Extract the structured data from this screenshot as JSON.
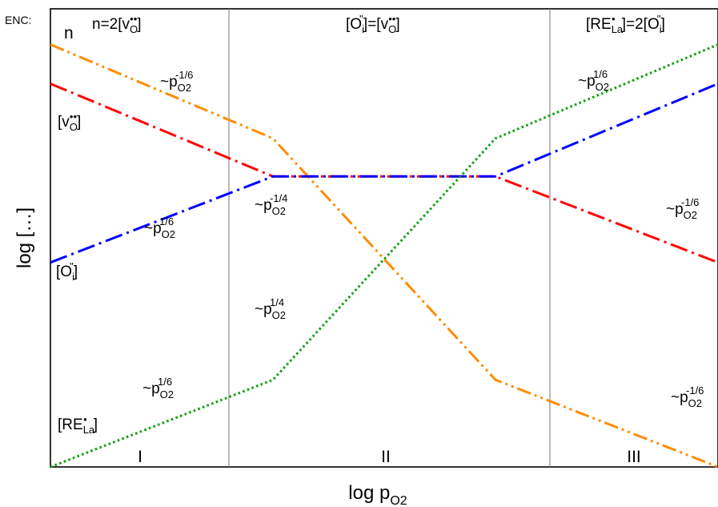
{
  "chart_data": {
    "type": "line",
    "title": "",
    "xlabel": "log p",
    "xlabel_sub": "O2",
    "ylabel": "log […]",
    "corner_labels": {
      "enc": "ENC:",
      "n": "n"
    },
    "regions": [
      {
        "numeral": "I",
        "condition": {
          "base": "n=2[v",
          "sub": "O",
          "sup": "••",
          "tail": "]"
        }
      },
      {
        "numeral": "II",
        "condition": {
          "base": "[O",
          "sub": "i",
          "sup": "''",
          "mid": "]=[v",
          "sub2": "O",
          "sup2": "••",
          "tail": "]"
        }
      },
      {
        "numeral": "III",
        "condition": {
          "base": "[RE",
          "sub": "La",
          "sup": "•",
          "mid": "]=2[O",
          "sub2": "i",
          "sup2": "''",
          "tail": "]"
        }
      }
    ],
    "region_boundaries_x": [
      1,
      2
    ],
    "xlim": [
      0,
      3
    ],
    "ylim": [
      0,
      4.1
    ],
    "series": [
      {
        "key": "electrons",
        "color": "#FF8C00",
        "style": "dash-dot-dot",
        "x": [
          0,
          1,
          2,
          3
        ],
        "y": [
          3.78,
          2.94,
          0.78,
          0.0
        ]
      },
      {
        "key": "vacancies",
        "color": "#FF0000",
        "style": "dash-dot",
        "x": [
          0,
          1,
          2,
          3
        ],
        "y": [
          3.43,
          2.6,
          2.6,
          1.83
        ]
      },
      {
        "key": "interstitials",
        "color": "#0000FF",
        "style": "dash-dot",
        "x": [
          0,
          1,
          2,
          3
        ],
        "y": [
          1.83,
          2.6,
          2.6,
          3.43
        ]
      },
      {
        "key": "dopant",
        "color": "#00A000",
        "style": "dotted",
        "x": [
          0,
          1,
          2,
          3
        ],
        "y": [
          0.0,
          0.78,
          2.94,
          3.78
        ]
      }
    ],
    "species_labels": {
      "vacancies": {
        "base": "[v",
        "sub": "O",
        "sup": "••",
        "tail": "]"
      },
      "interstitials": {
        "base": "[O",
        "sub": "i",
        "sup": "''",
        "tail": "]"
      },
      "dopant": {
        "base": "[RE",
        "sub": "La",
        "sup": "•",
        "tail": "]"
      }
    },
    "slope_labels": [
      {
        "base": "~p",
        "sub": "O2",
        "sup": "-1/6"
      },
      {
        "base": "~p",
        "sub": "O2",
        "sup": "1/6"
      },
      {
        "base": "~p",
        "sub": "O2",
        "sup": "1/6"
      },
      {
        "base": "~p",
        "sub": "O2",
        "sup": "-1/4"
      },
      {
        "base": "~p",
        "sub": "O2",
        "sup": "1/4"
      },
      {
        "base": "~p",
        "sub": "O2",
        "sup": "1/6"
      },
      {
        "base": "~p",
        "sub": "O2",
        "sup": "-1/6"
      },
      {
        "base": "~p",
        "sub": "O2",
        "sup": "-1/6"
      }
    ]
  }
}
